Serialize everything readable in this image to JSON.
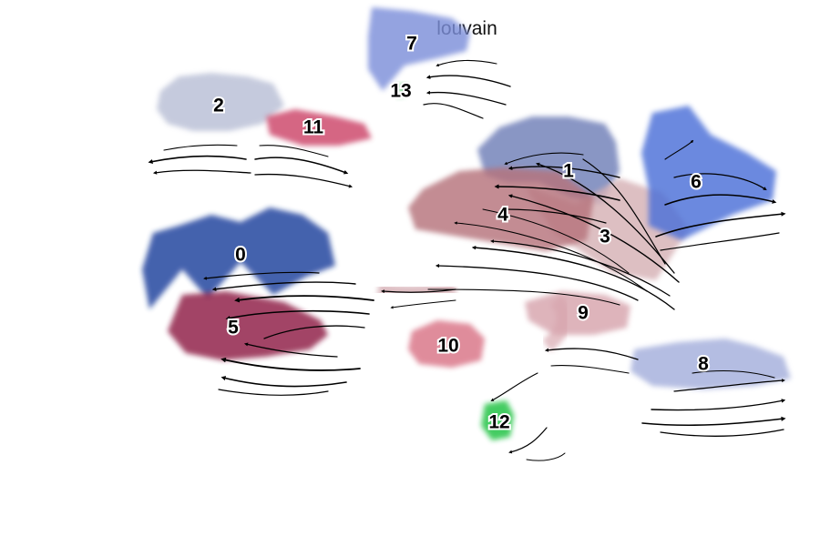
{
  "chart_data": {
    "type": "scatter",
    "title": "louvain",
    "xlabel": "",
    "ylabel": "",
    "grid": false,
    "axes_visible": false,
    "overlay": "velocity streamlines with arrowheads",
    "clusters": [
      {
        "label": "0",
        "color": "#1f3f9c",
        "x": -6.2,
        "y": 0.5
      },
      {
        "label": "1",
        "color": "#6f7fb8",
        "x": 2.8,
        "y": 2.8
      },
      {
        "label": "2",
        "color": "#b9bfd6",
        "x": -6.8,
        "y": 4.6
      },
      {
        "label": "3",
        "color": "#d6b1b5",
        "x": 3.8,
        "y": 1.0
      },
      {
        "label": "4",
        "color": "#b6737b",
        "x": 1.0,
        "y": 1.6
      },
      {
        "label": "5",
        "color": "#8e1a45",
        "x": -6.4,
        "y": -1.5
      },
      {
        "label": "6",
        "color": "#4b6fd8",
        "x": 6.3,
        "y": 2.5
      },
      {
        "label": "7",
        "color": "#7d8fda",
        "x": -1.5,
        "y": 6.3
      },
      {
        "label": "8",
        "color": "#a4afdc",
        "x": 6.5,
        "y": -2.5
      },
      {
        "label": "9",
        "color": "#d7a4ad",
        "x": 3.2,
        "y": -1.1
      },
      {
        "label": "10",
        "color": "#d97386",
        "x": -0.5,
        "y": -2.0
      },
      {
        "label": "11",
        "color": "#cc4569",
        "x": -4.2,
        "y": 4.0
      },
      {
        "label": "12",
        "color": "#1cc13f",
        "x": 0.9,
        "y": -4.1
      },
      {
        "label": "13",
        "color": "#8ed49c",
        "x": -1.8,
        "y": 5.0
      }
    ]
  }
}
